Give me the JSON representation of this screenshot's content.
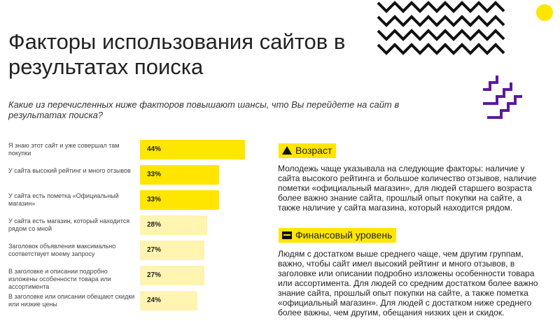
{
  "title": "Факторы использования сайтов в результатах поиска",
  "question": "Какие из перечисленных ниже факторов повышают шансы, что Вы перейдете на сайт в результатах поиска?",
  "chart_data": {
    "type": "bar",
    "categories": [
      "Я знаю этот сайт и уже совершал там покупки",
      "У сайта высокий рейтинг и много отзывов",
      "У сайта есть пометка «Официальный магазин»",
      "У сайта есть магазин, который находится рядом со мной",
      "Заголовок объявления максимально соответствует моему запросу",
      "В заголовке и описании подробно изложены особенности товара или ассортимента",
      "В заголовке или описании обещают скидки или низкие цены"
    ],
    "values": [
      44,
      33,
      33,
      28,
      27,
      27,
      24
    ],
    "value_labels": [
      "44%",
      "33%",
      "33%",
      "28%",
      "27%",
      "27%",
      "24%"
    ],
    "colors": [
      "#ffe600",
      "#ffe600",
      "#ffe600",
      "#fff4b0",
      "#fff4b0",
      "#fff4b0",
      "#fff4b0"
    ]
  },
  "sections": [
    {
      "heading": "Возраст",
      "text": "Молодежь чаще указывала на следующие факторы: наличие у сайта высокого рейтинга и большое количество отзывов, наличие пометки «официальный магазин», для людей старшего возраста более важно знание сайта, прошлый опыт покупки на сайте, а также наличие у сайта магазина, который находится рядом."
    },
    {
      "heading": "Финансовый уровень",
      "text": "Людям с достатком выше среднего чаще, чем другим группам, важно, чтобы сайт имел высокий рейтинг и много отзывов, в заголовке или описании подробно изложены особенности товара или ассортимента. Для людей со средним достатком более важно знание сайта, прошлый опыт покупки на сайте, а также пометка «официальный магазин». Для людей с достатком ниже среднего более важны, чем другим, обещания низких цен и скидок."
    }
  ]
}
